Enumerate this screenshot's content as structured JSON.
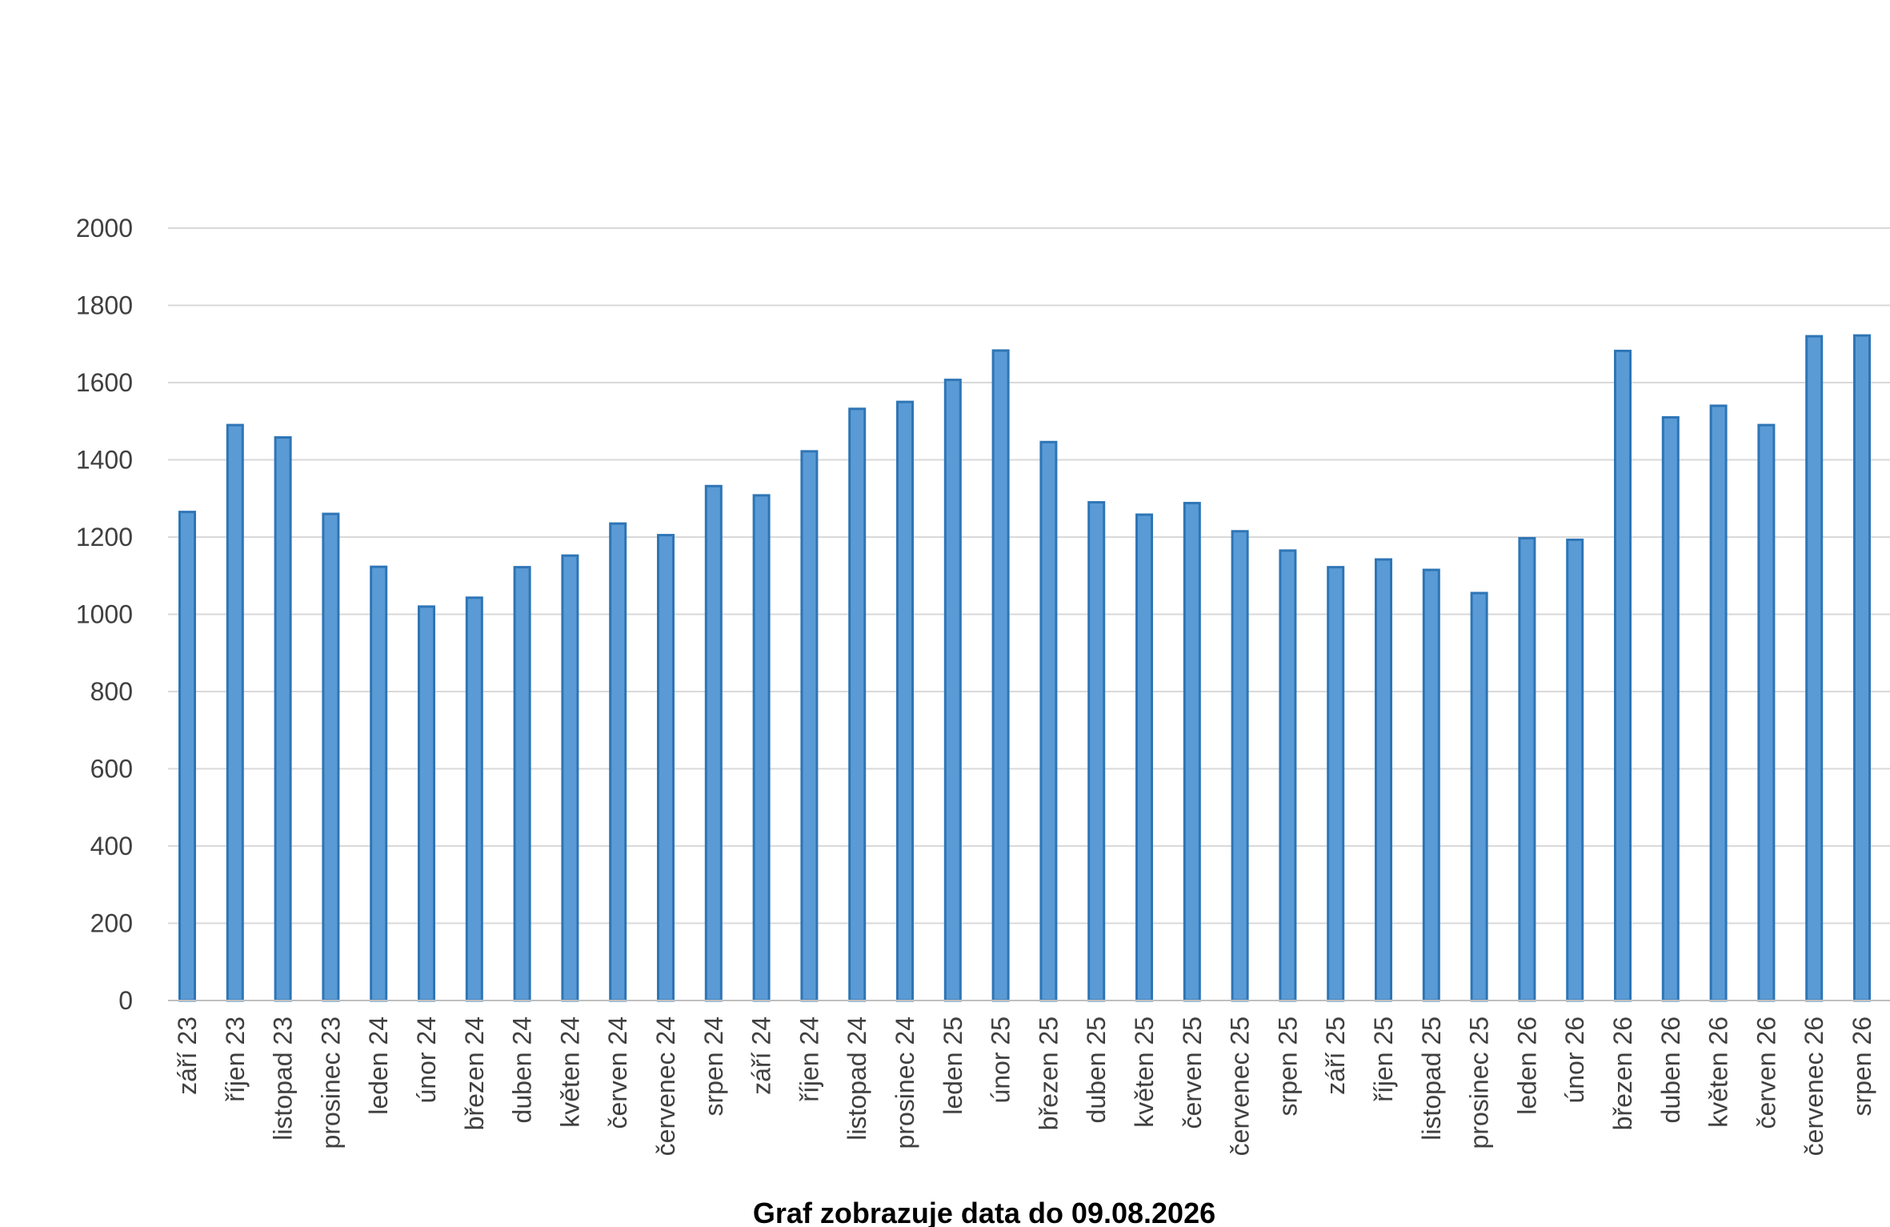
{
  "colors": {
    "bar_fill": "#5b9bd5",
    "bar_stroke": "#2e75b6",
    "grid": "#d9d9d9",
    "axis": "#bfbfbf",
    "text": "#404040"
  },
  "chart_data": {
    "type": "bar",
    "caption": "Graf zobrazuje data do 09.08.2026",
    "categories": [
      "září 23",
      "říjen 23",
      "listopad 23",
      "prosinec 23",
      "leden 24",
      "únor 24",
      "březen 24",
      "duben 24",
      "květen 24",
      "červen 24",
      "červenec 24",
      "srpen 24",
      "září 24",
      "říjen 24",
      "listopad 24",
      "prosinec 24",
      "leden 25",
      "únor 25",
      "březen 25",
      "duben 25",
      "květen 25",
      "červen 25",
      "červenec 25",
      "srpen 25",
      "září 25",
      "říjen 25",
      "listopad 25",
      "prosinec 25",
      "leden 26",
      "únor 26",
      "březen 26",
      "duben 26",
      "květen 26",
      "červen 26",
      "červenec 26",
      "srpen 26"
    ],
    "values": [
      1265,
      1490,
      1458,
      1260,
      1123,
      1020,
      1043,
      1122,
      1152,
      1235,
      1205,
      1332,
      1308,
      1422,
      1532,
      1550,
      1607,
      1683,
      1446,
      1290,
      1258,
      1288,
      1215,
      1165,
      1122,
      1142,
      1115,
      1055,
      1197,
      1193,
      1682,
      1510,
      1540,
      1490,
      1720,
      1722
    ],
    "ylim": [
      0,
      2000
    ],
    "yticks": [
      0,
      200,
      400,
      600,
      800,
      1000,
      1200,
      1400,
      1600,
      1800,
      2000
    ],
    "grid": true,
    "legend": "none"
  }
}
